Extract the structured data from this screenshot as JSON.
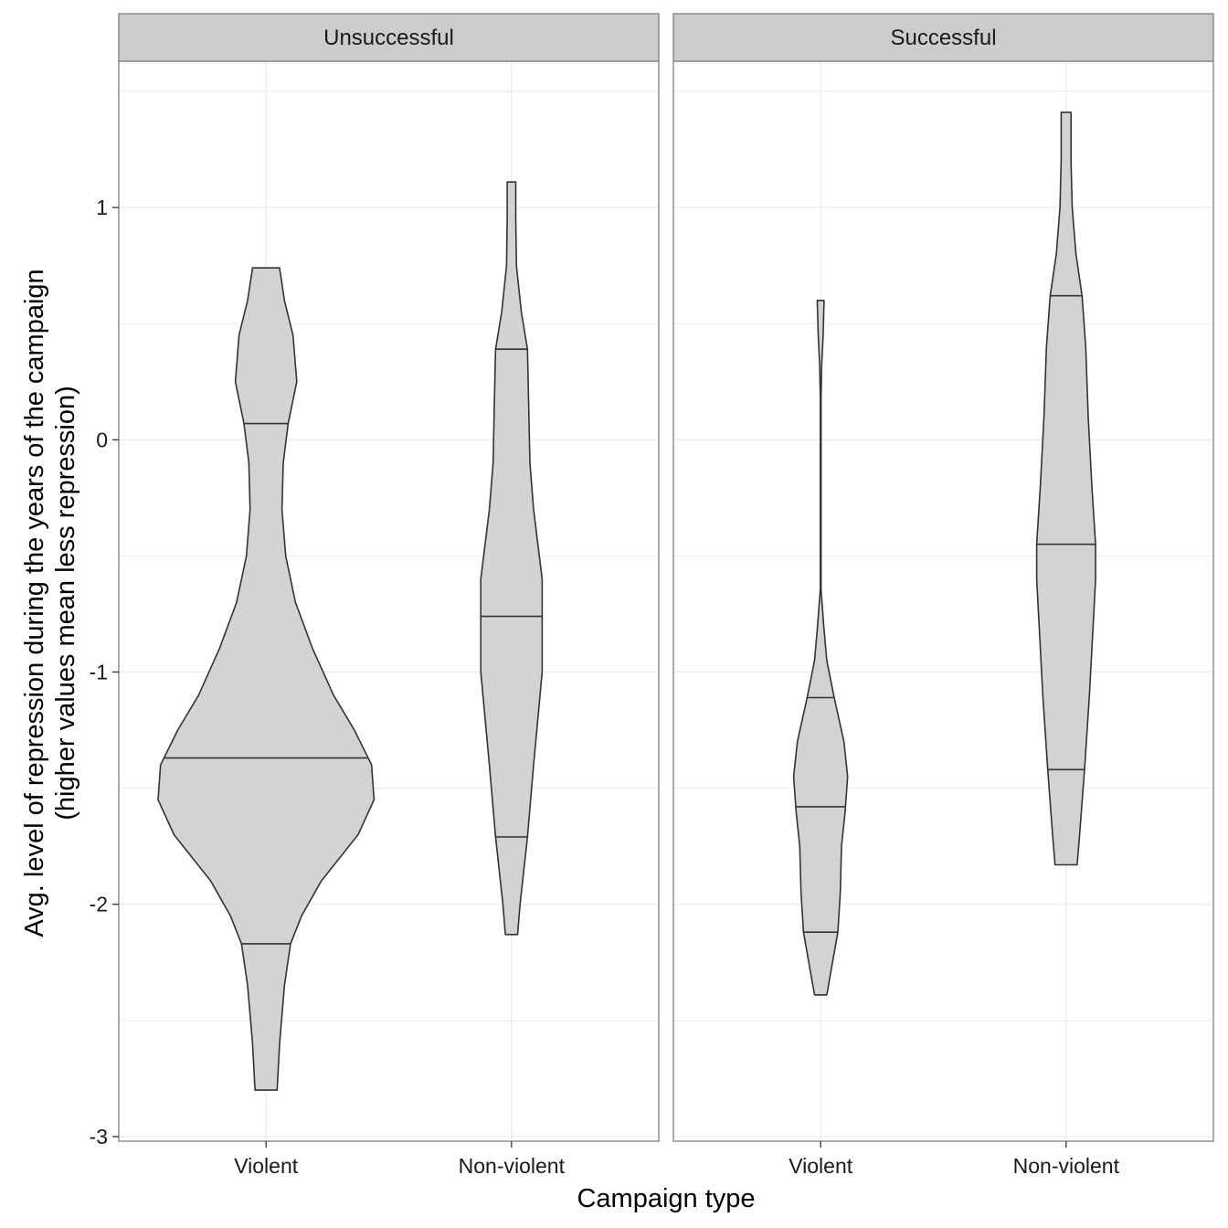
{
  "chart_data": {
    "type": "violin",
    "xlabel": "Campaign type",
    "ylabel_line1": "Avg. level of repression during the years of the campaign",
    "ylabel_line2": "(higher values mean less repression)",
    "ylim": [
      -3.02,
      1.63
    ],
    "y_ticks": [
      -3,
      -2,
      -1,
      0,
      1
    ],
    "y_tick_labels": [
      "-3",
      "-2",
      "-1",
      "0",
      "1"
    ],
    "categories": [
      "Violent",
      "Non-violent"
    ],
    "grid": true,
    "colors": {
      "fill": "#d3d3d3",
      "outline": "#333333",
      "strip": "#cccccc",
      "grid": "#ebebeb",
      "border": "#7f7f7f"
    },
    "panels": [
      {
        "name": "Unsuccessful",
        "violins": [
          {
            "category": "Violent",
            "quantiles": [
              -2.17,
              -1.37,
              0.07
            ],
            "profile": [
              [
                -2.8,
                0.09
              ],
              [
                -2.6,
                0.11
              ],
              [
                -2.35,
                0.15
              ],
              [
                -2.17,
                0.2
              ],
              [
                -2.05,
                0.29
              ],
              [
                -1.9,
                0.45
              ],
              [
                -1.7,
                0.75
              ],
              [
                -1.55,
                0.88
              ],
              [
                -1.4,
                0.86
              ],
              [
                -1.25,
                0.72
              ],
              [
                -1.1,
                0.55
              ],
              [
                -0.9,
                0.38
              ],
              [
                -0.7,
                0.24
              ],
              [
                -0.5,
                0.16
              ],
              [
                -0.3,
                0.13
              ],
              [
                -0.1,
                0.14
              ],
              [
                0.07,
                0.18
              ],
              [
                0.25,
                0.25
              ],
              [
                0.45,
                0.22
              ],
              [
                0.6,
                0.15
              ],
              [
                0.74,
                0.11
              ]
            ]
          },
          {
            "category": "Non-violent",
            "quantiles": [
              -1.71,
              -0.76,
              0.39
            ],
            "profile": [
              [
                -2.13,
                0.05
              ],
              [
                -2.0,
                0.07
              ],
              [
                -1.71,
                0.13
              ],
              [
                -1.4,
                0.18
              ],
              [
                -1.0,
                0.25
              ],
              [
                -0.6,
                0.25
              ],
              [
                -0.3,
                0.18
              ],
              [
                -0.1,
                0.15
              ],
              [
                0.15,
                0.14
              ],
              [
                0.39,
                0.13
              ],
              [
                0.55,
                0.08
              ],
              [
                0.75,
                0.04
              ],
              [
                0.95,
                0.035
              ],
              [
                1.11,
                0.035
              ]
            ]
          }
        ]
      },
      {
        "name": "Successful",
        "violins": [
          {
            "category": "Violent",
            "quantiles": [
              -2.12,
              -1.58,
              -1.11
            ],
            "profile": [
              [
                -2.39,
                0.05
              ],
              [
                -2.3,
                0.08
              ],
              [
                -2.12,
                0.14
              ],
              [
                -1.95,
                0.16
              ],
              [
                -1.75,
                0.17
              ],
              [
                -1.6,
                0.2
              ],
              [
                -1.45,
                0.22
              ],
              [
                -1.3,
                0.19
              ],
              [
                -1.11,
                0.11
              ],
              [
                -0.95,
                0.05
              ],
              [
                -0.8,
                0.025
              ],
              [
                -0.68,
                0.008
              ],
              [
                -0.64,
                0.003
              ],
              [
                0.0,
                0.003
              ],
              [
                0.18,
                0.003
              ],
              [
                0.32,
                0.008
              ],
              [
                0.45,
                0.02
              ],
              [
                0.6,
                0.028
              ]
            ]
          },
          {
            "category": "Non-violent",
            "quantiles": [
              -1.42,
              -0.45,
              0.62
            ],
            "profile": [
              [
                -1.83,
                0.09
              ],
              [
                -1.7,
                0.11
              ],
              [
                -1.42,
                0.15
              ],
              [
                -1.1,
                0.19
              ],
              [
                -0.8,
                0.22
              ],
              [
                -0.6,
                0.24
              ],
              [
                -0.45,
                0.24
              ],
              [
                -0.2,
                0.21
              ],
              [
                0.1,
                0.18
              ],
              [
                0.4,
                0.16
              ],
              [
                0.62,
                0.13
              ],
              [
                0.8,
                0.08
              ],
              [
                1.0,
                0.05
              ],
              [
                1.2,
                0.04
              ],
              [
                1.41,
                0.04
              ]
            ]
          }
        ]
      }
    ]
  }
}
